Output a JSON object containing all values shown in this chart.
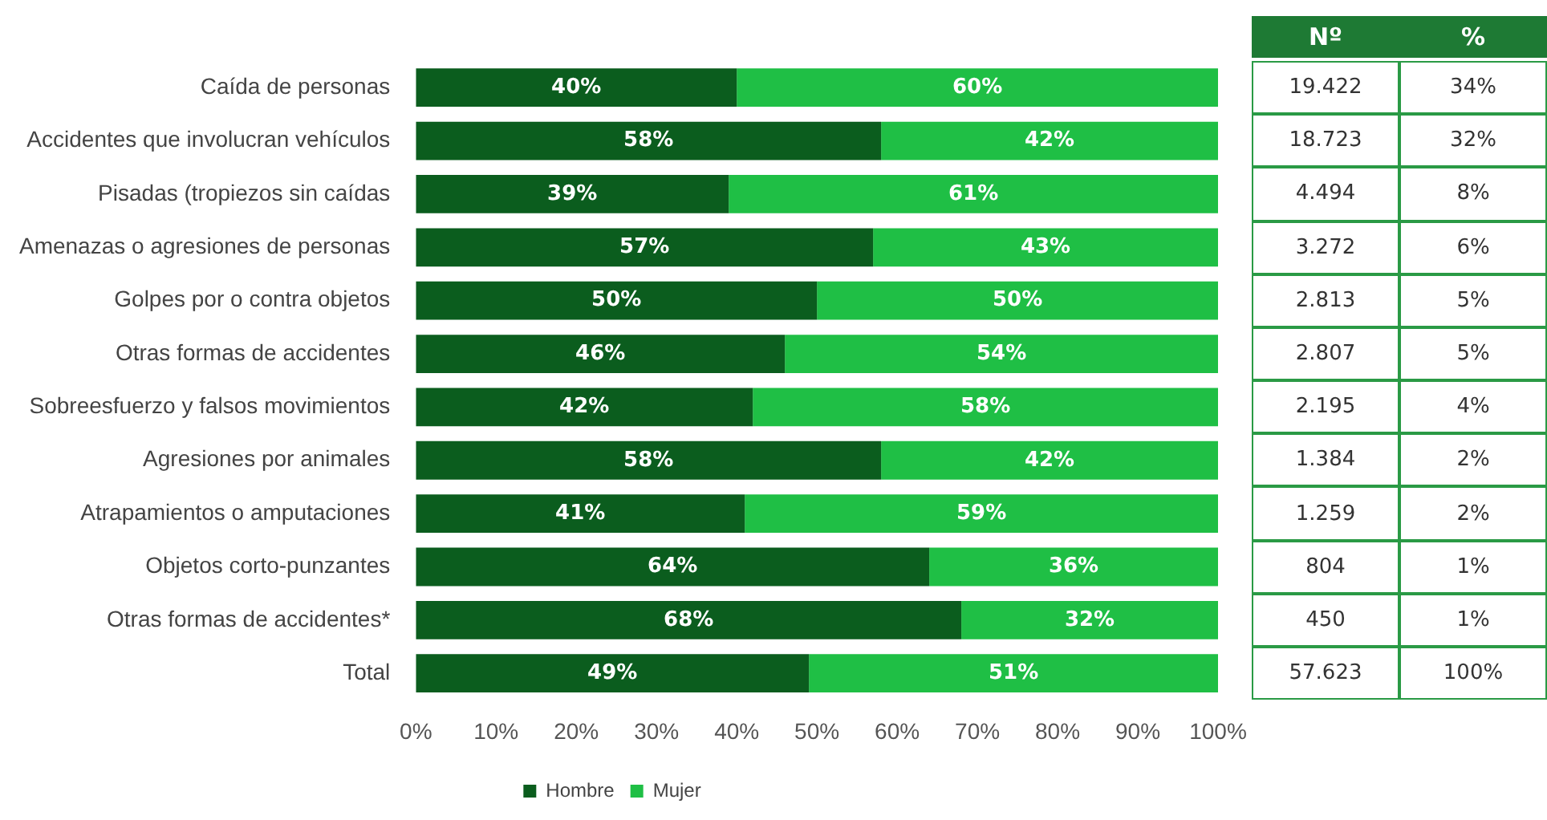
{
  "chart_data": {
    "type": "bar",
    "orientation": "horizontal",
    "stacked": true,
    "categories": [
      "Caída de personas",
      "Accidentes que involucran vehículos",
      "Pisadas (tropiezos sin caídas",
      "Amenazas o agresiones de personas",
      "Golpes por o contra objetos",
      "Otras formas de accidentes",
      "Sobreesfuerzo y falsos movimientos",
      "Agresiones por animales",
      "Atrapamientos o amputaciones",
      "Objetos corto-punzantes",
      "Otras formas de accidentes*",
      "Total"
    ],
    "series": [
      {
        "name": "Hombre",
        "color": "#0b5d1e",
        "values": [
          40,
          58,
          39,
          57,
          50,
          46,
          42,
          58,
          41,
          64,
          68,
          49
        ],
        "value_labels": [
          "40%",
          "58%",
          "39%",
          "57%",
          "50%",
          "46%",
          "42%",
          "58%",
          "41%",
          "64%",
          "68%",
          "49%"
        ]
      },
      {
        "name": "Mujer",
        "color": "#1fbf45",
        "values": [
          60,
          42,
          61,
          43,
          50,
          54,
          58,
          42,
          59,
          36,
          32,
          51
        ],
        "value_labels": [
          "60%",
          "42%",
          "61%",
          "43%",
          "50%",
          "54%",
          "58%",
          "42%",
          "59%",
          "36%",
          "32%",
          "51%"
        ]
      }
    ],
    "xlim": [
      0,
      100
    ],
    "xticks": [
      {
        "value": 0,
        "label": "0%"
      },
      {
        "value": 10,
        "label": "10%"
      },
      {
        "value": 20,
        "label": "20%"
      },
      {
        "value": 30,
        "label": "30%"
      },
      {
        "value": 40,
        "label": "40%"
      },
      {
        "value": 50,
        "label": "50%"
      },
      {
        "value": 60,
        "label": "60%"
      },
      {
        "value": 70,
        "label": "70%"
      },
      {
        "value": 80,
        "label": "80%"
      },
      {
        "value": 90,
        "label": "90%"
      },
      {
        "value": 100,
        "label": "100%"
      }
    ],
    "legend": "bottom",
    "grid": false,
    "annotations": [
      "Nº",
      "%",
      "19.422",
      "34%",
      "18.723",
      "32%",
      "4.494",
      "8%",
      "3.272",
      "6%",
      "2.813",
      "5%",
      "2.807",
      "5%",
      "2.195",
      "4%",
      "1.384",
      "2%",
      "1.259",
      "2%",
      "804",
      "1%",
      "450",
      "1%",
      "57.623",
      "100%"
    ]
  }
}
